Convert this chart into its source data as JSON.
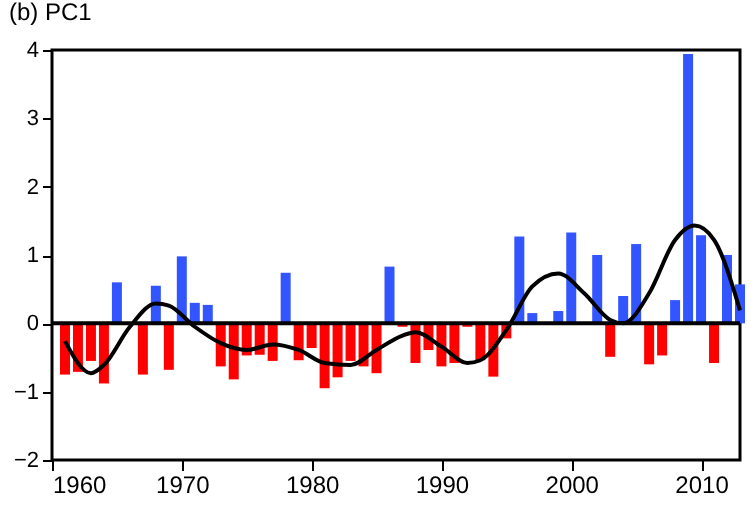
{
  "chart_data": {
    "type": "bar",
    "title": "(b) PC1",
    "x": [
      1961,
      1962,
      1963,
      1964,
      1965,
      1966,
      1967,
      1968,
      1969,
      1970,
      1971,
      1972,
      1973,
      1974,
      1975,
      1976,
      1977,
      1978,
      1979,
      1980,
      1981,
      1982,
      1983,
      1984,
      1985,
      1986,
      1987,
      1988,
      1989,
      1990,
      1991,
      1992,
      1993,
      1994,
      1995,
      1996,
      1997,
      1998,
      1999,
      2000,
      2001,
      2002,
      2003,
      2004,
      2005,
      2006,
      2007,
      2008,
      2009,
      2010,
      2011,
      2012,
      2013
    ],
    "series": [
      {
        "values": [
          -0.75,
          -0.71,
          -0.55,
          -0.88,
          0.6,
          null,
          -0.75,
          0.55,
          -0.68,
          0.98,
          0.3,
          0.27,
          -0.63,
          -0.82,
          -0.47,
          -0.46,
          -0.55,
          0.74,
          -0.54,
          -0.36,
          -0.95,
          -0.79,
          -0.55,
          -0.63,
          -0.73,
          0.83,
          -0.05,
          -0.58,
          -0.39,
          -0.63,
          -0.58,
          -0.05,
          -0.54,
          -0.78,
          -0.22,
          1.27,
          0.15,
          null,
          0.18,
          1.33,
          null,
          1.0,
          -0.49,
          0.4,
          1.16,
          -0.6,
          -0.47,
          0.34,
          3.94,
          1.29,
          -0.58,
          1.0,
          0.57
        ],
        "colors": [
          "#ff0000",
          "#ff0000",
          "#ff0000",
          "#ff0000",
          "#3355ff",
          "#ff0000",
          "#ff0000",
          "#3355ff",
          "#ff0000",
          "#3355ff",
          "#3355ff",
          "#3355ff",
          "#ff0000",
          "#ff0000",
          "#ff0000",
          "#ff0000",
          "#ff0000",
          "#3355ff",
          "#ff0000",
          "#ff0000",
          "#ff0000",
          "#ff0000",
          "#ff0000",
          "#ff0000",
          "#ff0000",
          "#3355ff",
          "#ff0000",
          "#ff0000",
          "#ff0000",
          "#ff0000",
          "#ff0000",
          "#ff0000",
          "#ff0000",
          "#ff0000",
          "#ff0000",
          "#3355ff",
          "#3355ff",
          "#3355ff",
          "#3355ff",
          "#3355ff",
          "#3355ff",
          "#3355ff",
          "#ff0000",
          "#3355ff",
          "#3355ff",
          "#ff0000",
          "#ff0000",
          "#3355ff",
          "#3355ff",
          "#3355ff",
          "#ff0000",
          "#3355ff",
          "#3355ff"
        ]
      },
      {
        "type": "line",
        "color": "#000000",
        "x": [
          1961,
          1963,
          1964,
          1966,
          1968,
          1969,
          1971,
          1973,
          1975,
          1977,
          1979,
          1981,
          1983,
          1985,
          1987,
          1988,
          1990,
          1992,
          1993,
          1995,
          1997,
          1999,
          2001,
          2003,
          2004,
          2006,
          2008,
          2009.5,
          2011,
          2013
        ],
        "values": [
          -0.26,
          -0.73,
          -0.61,
          -0.05,
          0.29,
          0.26,
          -0.05,
          -0.29,
          -0.39,
          -0.31,
          -0.39,
          -0.58,
          -0.61,
          -0.39,
          -0.18,
          -0.13,
          -0.34,
          -0.58,
          -0.54,
          -0.1,
          0.54,
          0.73,
          0.44,
          0.05,
          0.0,
          0.44,
          1.22,
          1.43,
          1.22,
          0.19
        ]
      }
    ],
    "xlim": [
      1960,
      2013
    ],
    "xticks": [
      1960,
      1970,
      1980,
      1990,
      2000,
      2010
    ],
    "ylim": [
      -2,
      4
    ],
    "yticks": [
      -2,
      -1,
      0,
      1,
      2,
      3,
      4
    ],
    "ref_lines": [
      {
        "axis": "y",
        "value": 0,
        "color": "#000000"
      }
    ],
    "grid": false,
    "marker": "none",
    "line_style": "solid"
  }
}
